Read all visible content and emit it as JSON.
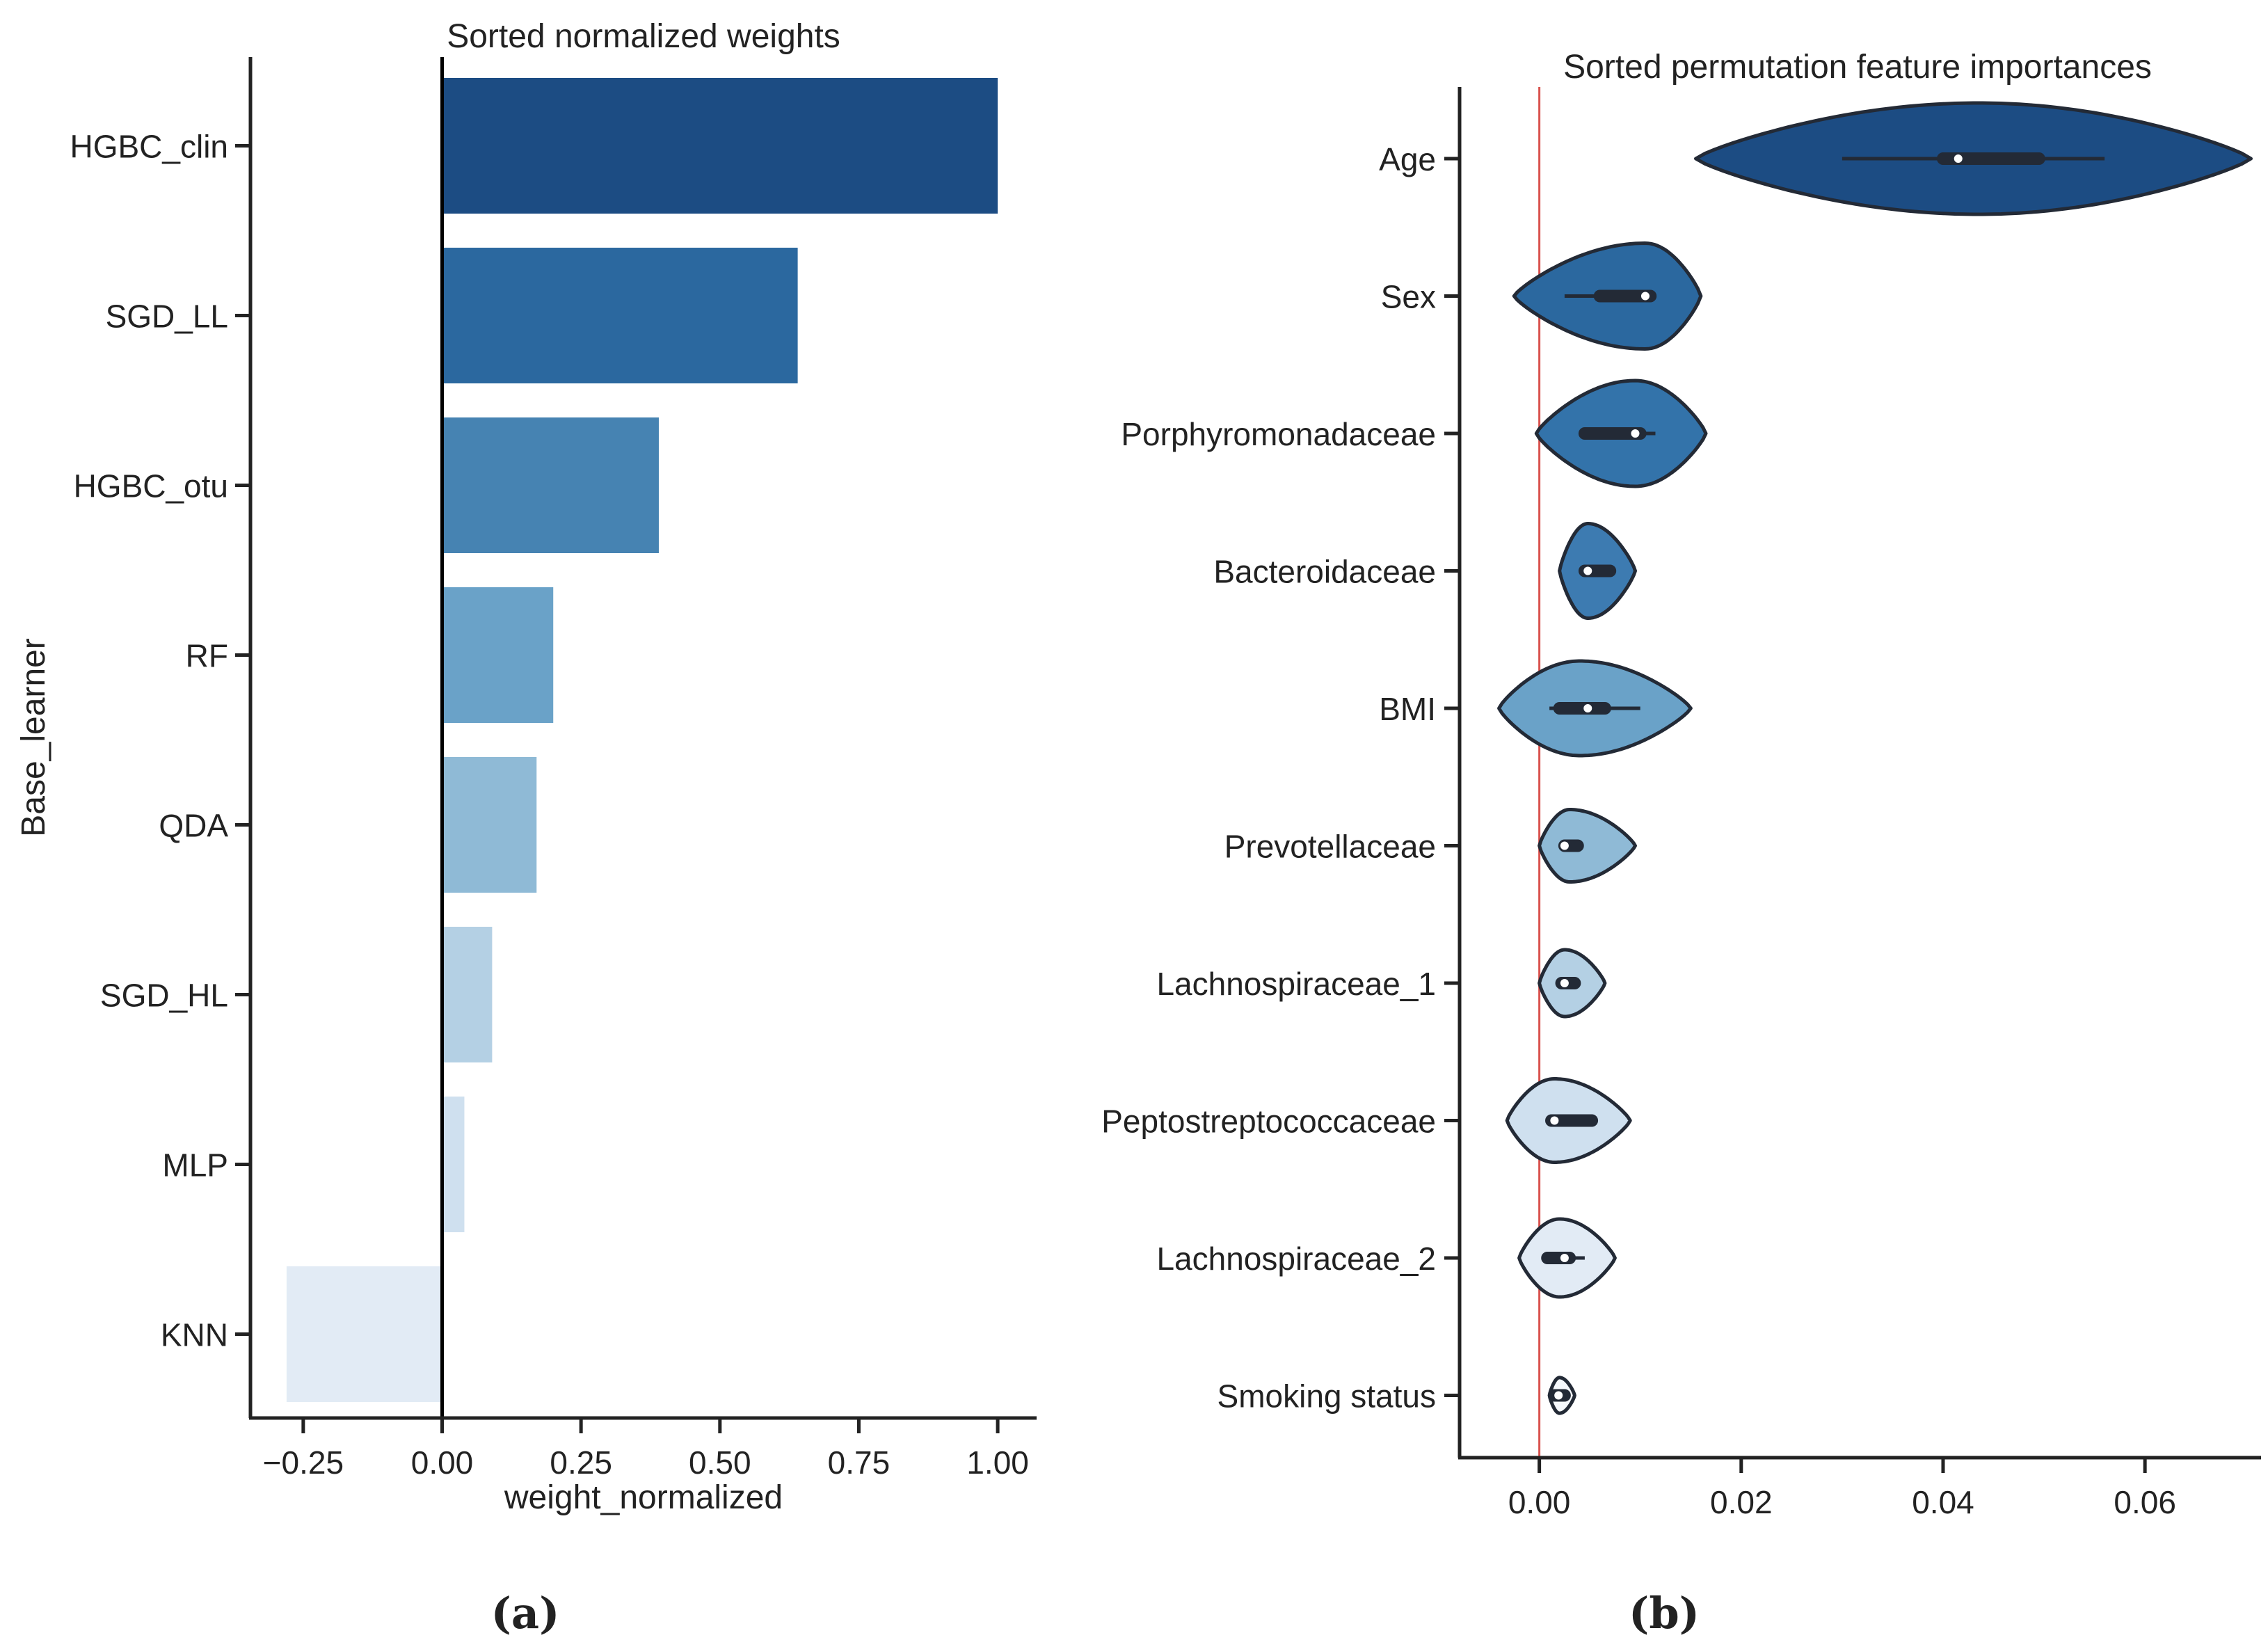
{
  "chart_data": [
    {
      "type": "bar",
      "orientation": "horizontal",
      "title": "Sorted normalized weights",
      "xlabel": "weight_normalized",
      "ylabel": "Base_learner",
      "categories": [
        "HGBC_clin",
        "SGD_LL",
        "HGBC_otu",
        "RF",
        "QDA",
        "SGD_HL",
        "MLP",
        "KNN"
      ],
      "values": [
        1.0,
        0.64,
        0.39,
        0.2,
        0.17,
        0.09,
        0.04,
        -0.28
      ],
      "colors": [
        "#1c4c83",
        "#2b689f",
        "#4683b2",
        "#6aa2c8",
        "#8fbad6",
        "#b4d0e4",
        "#cfe0ef",
        "#e2ebf5"
      ],
      "xlim": [
        -0.345,
        1.07
      ],
      "xticks": [
        -0.25,
        0.0,
        0.25,
        0.5,
        0.75,
        1.0
      ],
      "xtick_labels": [
        "−0.25",
        "0.00",
        "0.25",
        "0.50",
        "0.75",
        "1.00"
      ],
      "zero_line_color": "#000000",
      "caption": "(a)"
    },
    {
      "type": "violin",
      "orientation": "horizontal",
      "title": "Sorted permutation feature importances",
      "xlabel": "",
      "ylabel": "",
      "categories": [
        "Age",
        "Sex",
        "Porphyromonadaceae",
        "Bacteroidaceae",
        "BMI",
        "Prevotellaceae",
        "Lachnospiraceae_1",
        "Peptostreptococcaceae",
        "Lachnospiraceae_2",
        "Smoking status"
      ],
      "colors": [
        "#1c4c83",
        "#2b689f",
        "#3373aa",
        "#3d7bb1",
        "#6aa2c8",
        "#8fbad6",
        "#b4d0e4",
        "#cfe0ef",
        "#e2ebf5",
        "#f5f8fc"
      ],
      "distributions": [
        {
          "min": 0.0155,
          "max": 0.0705,
          "mode": 0.0435,
          "median": 0.0415,
          "q1": 0.04,
          "q3": 0.0495,
          "whisker_low": 0.03,
          "whisker_high": 0.056,
          "max_density": 1.0
        },
        {
          "min": -0.0025,
          "max": 0.016,
          "mode": 0.0105,
          "median": 0.0105,
          "q1": 0.006,
          "q3": 0.011,
          "whisker_low": 0.0025,
          "whisker_high": 0.0115,
          "max_density": 0.95
        },
        {
          "min": -0.0003,
          "max": 0.0165,
          "mode": 0.0095,
          "median": 0.0095,
          "q1": 0.0045,
          "q3": 0.01,
          "whisker_low": 0.0045,
          "whisker_high": 0.0115,
          "max_density": 0.95
        },
        {
          "min": 0.002,
          "max": 0.0095,
          "mode": 0.0048,
          "median": 0.0048,
          "q1": 0.0045,
          "q3": 0.007,
          "whisker_low": 0.0045,
          "whisker_high": 0.007,
          "max_density": 0.85
        },
        {
          "min": -0.004,
          "max": 0.015,
          "mode": 0.004,
          "median": 0.0048,
          "q1": 0.002,
          "q3": 0.0065,
          "whisker_low": 0.001,
          "whisker_high": 0.01,
          "max_density": 0.85
        },
        {
          "min": 0.0,
          "max": 0.0095,
          "mode": 0.003,
          "median": 0.0025,
          "q1": 0.0025,
          "q3": 0.0038,
          "whisker_low": 0.0025,
          "whisker_high": 0.0038,
          "max_density": 0.65
        },
        {
          "min": 0.0,
          "max": 0.0065,
          "mode": 0.0025,
          "median": 0.0025,
          "q1": 0.0022,
          "q3": 0.0035,
          "whisker_low": 0.0022,
          "whisker_high": 0.0035,
          "max_density": 0.6
        },
        {
          "min": -0.0032,
          "max": 0.009,
          "mode": 0.0015,
          "median": 0.0015,
          "q1": 0.0012,
          "q3": 0.0052,
          "whisker_low": 0.0008,
          "whisker_high": 0.0052,
          "max_density": 0.75
        },
        {
          "min": -0.002,
          "max": 0.0075,
          "mode": 0.002,
          "median": 0.0025,
          "q1": 0.0008,
          "q3": 0.003,
          "whisker_low": 0.0005,
          "whisker_high": 0.0045,
          "max_density": 0.7
        },
        {
          "min": 0.001,
          "max": 0.0035,
          "mode": 0.002,
          "median": 0.0019,
          "q1": 0.0015,
          "q3": 0.0025,
          "whisker_low": 0.0015,
          "whisker_high": 0.0025,
          "max_density": 0.32
        }
      ],
      "xlim": [
        -0.0079,
        0.0715
      ],
      "xticks": [
        0.0,
        0.02,
        0.04,
        0.06
      ],
      "xtick_labels": [
        "0.00",
        "0.02",
        "0.04",
        "0.06"
      ],
      "reference_line": {
        "x": 0.0,
        "color": "#d9534f"
      },
      "caption": "(b)"
    }
  ]
}
